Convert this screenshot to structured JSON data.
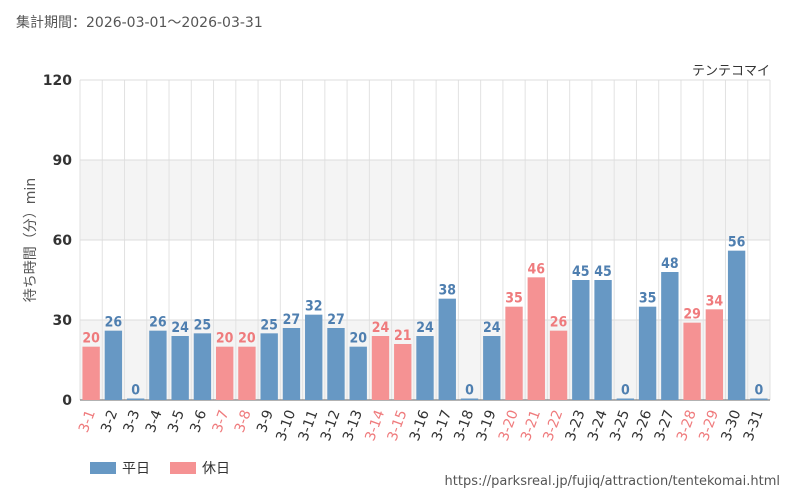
{
  "header": {
    "period": "集計期間：2026-03-01～2026-03-31",
    "attraction": "テンテコマイ"
  },
  "legend": {
    "weekday_label": "平日",
    "holiday_label": "休日"
  },
  "source_url": "https://parksreal.jp/fujiq/attraction/tentekomai.html",
  "colors": {
    "weekday": "#6798c4",
    "holiday": "#f59293",
    "weekday_text": "#4f7fb0",
    "holiday_text": "#ef7b7d"
  },
  "chart_data": {
    "type": "bar",
    "ylabel": "待ち時間（分）min",
    "ylim": [
      0,
      120
    ],
    "yticks": [
      0,
      30,
      60,
      90,
      120
    ],
    "grid": true,
    "legend_position": "bottom-left",
    "categories": [
      "3-1",
      "3-2",
      "3-3",
      "3-4",
      "3-5",
      "3-6",
      "3-7",
      "3-8",
      "3-9",
      "3-10",
      "3-11",
      "3-12",
      "3-13",
      "3-14",
      "3-15",
      "3-16",
      "3-17",
      "3-18",
      "3-19",
      "3-20",
      "3-21",
      "3-22",
      "3-23",
      "3-24",
      "3-25",
      "3-26",
      "3-27",
      "3-28",
      "3-29",
      "3-30",
      "3-31"
    ],
    "values": [
      20,
      26,
      0,
      26,
      24,
      25,
      20,
      20,
      25,
      27,
      32,
      27,
      20,
      24,
      21,
      24,
      38,
      0,
      24,
      35,
      46,
      26,
      45,
      45,
      0,
      35,
      48,
      29,
      34,
      56,
      0
    ],
    "day_type": [
      "holiday",
      "weekday",
      "weekday",
      "weekday",
      "weekday",
      "weekday",
      "holiday",
      "holiday",
      "weekday",
      "weekday",
      "weekday",
      "weekday",
      "weekday",
      "holiday",
      "holiday",
      "weekday",
      "weekday",
      "weekday",
      "weekday",
      "holiday",
      "holiday",
      "holiday",
      "weekday",
      "weekday",
      "weekday",
      "weekday",
      "weekday",
      "holiday",
      "holiday",
      "weekday",
      "weekday"
    ]
  }
}
